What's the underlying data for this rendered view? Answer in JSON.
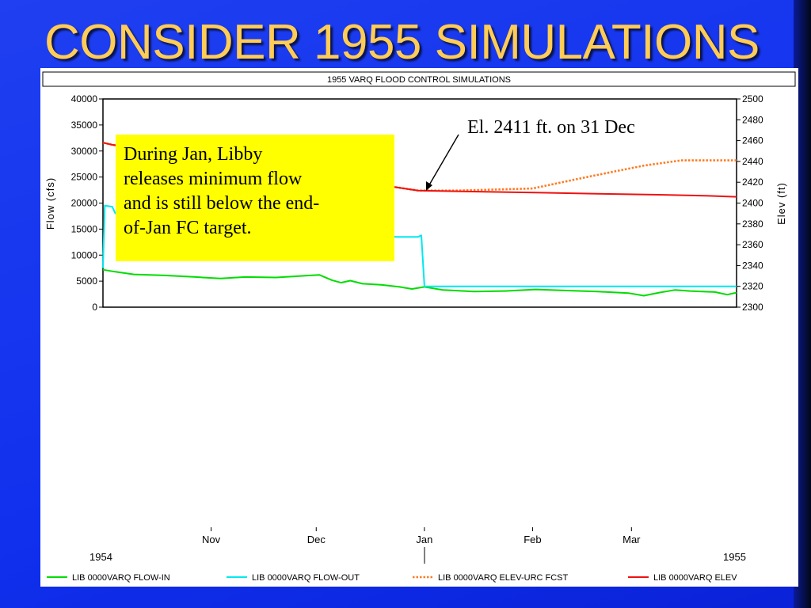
{
  "slide": {
    "title": "CONSIDER 1955 SIMULATIONS"
  },
  "chart_data": {
    "type": "line",
    "title": "1955 VARQ FLOOD CONTROL SIMULATIONS",
    "ylabel_left": "Flow (cfs)",
    "ylabel_right": "Elev (ft)",
    "y_left_range": [
      0,
      40000
    ],
    "y_right_range": [
      2300,
      2500
    ],
    "y_left_ticks": [
      "40000",
      "35000",
      "30000",
      "25000",
      "20000",
      "15000",
      "10000",
      "5000",
      "0"
    ],
    "y_right_ticks": [
      "2500",
      "2480",
      "2460",
      "2440",
      "2420",
      "2400",
      "2380",
      "2360",
      "2340",
      "2320",
      "2300"
    ],
    "x_range_days": [
      0,
      205
    ],
    "x_month_ticks": [
      {
        "label": "Nov",
        "day": 35
      },
      {
        "label": "Dec",
        "day": 69
      },
      {
        "label": "Jan",
        "day": 104
      },
      {
        "label": "Feb",
        "day": 139
      },
      {
        "label": "Mar",
        "day": 171
      }
    ],
    "x_year_labels": [
      "1954",
      "1955"
    ],
    "legend_position": "bottom",
    "series": [
      {
        "name": "LIB 0000VARQ FLOW-IN",
        "axis": "left",
        "color": "#00dd00",
        "dash": "solid",
        "points": [
          [
            0,
            7200
          ],
          [
            4,
            6800
          ],
          [
            10,
            6300
          ],
          [
            20,
            6100
          ],
          [
            30,
            5800
          ],
          [
            38,
            5500
          ],
          [
            46,
            5800
          ],
          [
            56,
            5700
          ],
          [
            64,
            6000
          ],
          [
            70,
            6200
          ],
          [
            74,
            5200
          ],
          [
            77,
            4700
          ],
          [
            80,
            5100
          ],
          [
            84,
            4500
          ],
          [
            90,
            4300
          ],
          [
            96,
            3900
          ],
          [
            100,
            3500
          ],
          [
            104,
            3900
          ],
          [
            110,
            3300
          ],
          [
            120,
            3000
          ],
          [
            130,
            3100
          ],
          [
            140,
            3400
          ],
          [
            150,
            3200
          ],
          [
            160,
            3000
          ],
          [
            170,
            2700
          ],
          [
            175,
            2200
          ],
          [
            180,
            2800
          ],
          [
            185,
            3300
          ],
          [
            190,
            3100
          ],
          [
            198,
            2900
          ],
          [
            202,
            2400
          ],
          [
            205,
            2800
          ]
        ]
      },
      {
        "name": "LIB 0000VARQ FLOW-OUT",
        "axis": "left",
        "color": "#00e8f0",
        "dash": "solid",
        "points": [
          [
            0,
            7500
          ],
          [
            0.6,
            19500
          ],
          [
            3,
            19300
          ],
          [
            4,
            18000
          ],
          [
            95,
            13500
          ],
          [
            102,
            13500
          ],
          [
            103,
            13800
          ],
          [
            104,
            4000
          ],
          [
            205,
            4000
          ]
        ]
      },
      {
        "name": "LIB 0000VARQ ELEV-URC FCST",
        "axis": "right",
        "color": "#ff7a20",
        "dash": "dotted",
        "points": [
          [
            0,
            2458
          ],
          [
            3,
            2456
          ],
          [
            102,
            2412
          ],
          [
            115,
            2412
          ],
          [
            139,
            2414
          ],
          [
            155,
            2424
          ],
          [
            165,
            2430
          ],
          [
            175,
            2436
          ],
          [
            187,
            2441
          ],
          [
            205,
            2441
          ]
        ]
      },
      {
        "name": "LIB 0000VARQ ELEV",
        "axis": "right",
        "color": "#ee1111",
        "dash": "solid",
        "points": [
          [
            0,
            2458
          ],
          [
            3,
            2456
          ],
          [
            102,
            2412
          ],
          [
            120,
            2411
          ],
          [
            140,
            2410
          ],
          [
            160,
            2409
          ],
          [
            180,
            2408
          ],
          [
            195,
            2407
          ],
          [
            205,
            2406
          ]
        ]
      }
    ]
  },
  "callout": {
    "lines": [
      "During Jan, Libby",
      "releases minimum flow",
      "and is still below the end-",
      "of-Jan FC target."
    ]
  },
  "annotation": {
    "text": "El. 2411 ft. on 31 Dec"
  },
  "colors": {
    "slide_background": "#1a38ee",
    "title_text": "#ffcc55",
    "callout_background": "#ffff00"
  }
}
